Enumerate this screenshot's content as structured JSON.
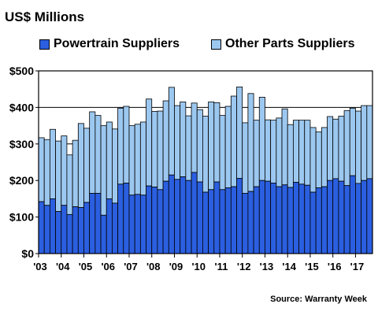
{
  "chart_data": {
    "type": "bar",
    "stacked": true,
    "title": "US$ Millions",
    "source": "Source: Warranty Week",
    "ylim": [
      0,
      500
    ],
    "yticks": [
      "$0",
      "$100",
      "$200",
      "$300",
      "$400",
      "$500"
    ],
    "ytick_values": [
      0,
      100,
      200,
      300,
      400,
      500
    ],
    "year_labels": [
      "'03",
      "'04",
      "'05",
      "'06",
      "'07",
      "'08",
      "'09",
      "'10",
      "'11",
      "'12",
      "'13",
      "'14",
      "'15",
      "'16",
      "'17"
    ],
    "categories": [
      "2003 Q1",
      "2003 Q2",
      "2003 Q3",
      "2003 Q4",
      "2004 Q1",
      "2004 Q2",
      "2004 Q3",
      "2004 Q4",
      "2005 Q1",
      "2005 Q2",
      "2005 Q3",
      "2005 Q4",
      "2006 Q1",
      "2006 Q2",
      "2006 Q3",
      "2006 Q4",
      "2007 Q1",
      "2007 Q2",
      "2007 Q3",
      "2007 Q4",
      "2008 Q1",
      "2008 Q2",
      "2008 Q3",
      "2008 Q4",
      "2009 Q1",
      "2009 Q2",
      "2009 Q3",
      "2009 Q4",
      "2010 Q1",
      "2010 Q2",
      "2010 Q3",
      "2010 Q4",
      "2011 Q1",
      "2011 Q2",
      "2011 Q3",
      "2011 Q4",
      "2012 Q1",
      "2012 Q2",
      "2012 Q3",
      "2012 Q4",
      "2013 Q1",
      "2013 Q2",
      "2013 Q3",
      "2013 Q4",
      "2014 Q1",
      "2014 Q2",
      "2014 Q3",
      "2014 Q4",
      "2015 Q1",
      "2015 Q2",
      "2015 Q3",
      "2015 Q4",
      "2016 Q1",
      "2016 Q2",
      "2016 Q3",
      "2016 Q4",
      "2017 Q1",
      "2017 Q2",
      "2017 Q3"
    ],
    "series": [
      {
        "name": "Powertrain Suppliers",
        "color": "#2b5fe0",
        "values": [
          142,
          132,
          150,
          115,
          132,
          107,
          128,
          126,
          140,
          165,
          165,
          105,
          150,
          138,
          190,
          193,
          160,
          162,
          160,
          185,
          182,
          175,
          198,
          215,
          203,
          210,
          200,
          222,
          196,
          168,
          175,
          196,
          175,
          180,
          183,
          206,
          165,
          170,
          183,
          200,
          198,
          193,
          183,
          188,
          181,
          195,
          190,
          187,
          168,
          180,
          183,
          200,
          205,
          198,
          186,
          213,
          192,
          200,
          205
        ]
      },
      {
        "name": "Other Parts Suppliers",
        "color": "#9cc8f0",
        "values": [
          175,
          180,
          190,
          193,
          190,
          163,
          182,
          230,
          203,
          223,
          213,
          245,
          210,
          203,
          208,
          210,
          190,
          192,
          200,
          238,
          207,
          215,
          220,
          240,
          202,
          205,
          177,
          190,
          198,
          208,
          240,
          217,
          203,
          223,
          248,
          250,
          193,
          268,
          182,
          228,
          168,
          172,
          188,
          208,
          172,
          170,
          175,
          178,
          177,
          153,
          162,
          175,
          163,
          178,
          205,
          185,
          198,
          205,
          200
        ]
      }
    ],
    "legend": "top",
    "grid": true
  }
}
